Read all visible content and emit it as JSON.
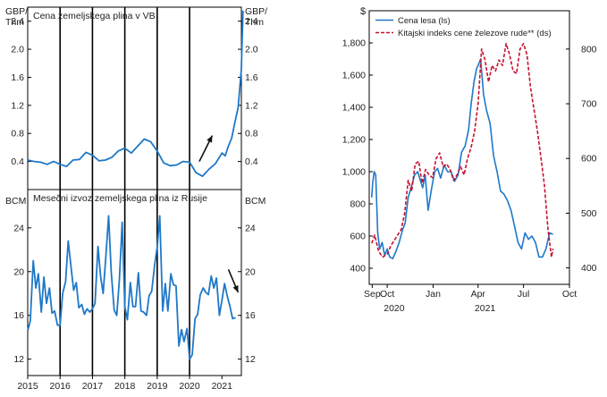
{
  "chart_data": [
    {
      "type": "line",
      "title": "Cena zemeljskega plina v VB",
      "unit_label": "GBP/\nThm",
      "ylim": [
        0,
        2.6
      ],
      "yticks": [
        0.4,
        0.8,
        1.2,
        1.6,
        2.0,
        2.4
      ],
      "ytick_labels": [
        "0.4",
        "0.8",
        "1.2",
        "1.6",
        "2.0",
        "2.4"
      ],
      "xlim": [
        2015,
        2021.6
      ],
      "vlines": [
        2016,
        2017,
        2018,
        2019,
        2020
      ],
      "arrow": {
        "direction": "up",
        "from": [
          2020.3,
          0.4
        ],
        "to": [
          2020.7,
          0.77
        ]
      },
      "series": [
        {
          "color": "#1f78c8",
          "x": [
            2015.0,
            2015.2,
            2015.4,
            2015.6,
            2015.8,
            2016.0,
            2016.2,
            2016.4,
            2016.6,
            2016.8,
            2017.0,
            2017.2,
            2017.4,
            2017.6,
            2017.8,
            2018.0,
            2018.2,
            2018.4,
            2018.6,
            2018.8,
            2019.0,
            2019.2,
            2019.4,
            2019.6,
            2019.8,
            2020.0,
            2020.2,
            2020.4,
            2020.6,
            2020.8,
            2021.0,
            2021.1,
            2021.2,
            2021.3,
            2021.4,
            2021.5,
            2021.6,
            2021.65
          ],
          "y": [
            0.42,
            0.4,
            0.39,
            0.36,
            0.4,
            0.36,
            0.33,
            0.42,
            0.43,
            0.53,
            0.49,
            0.41,
            0.42,
            0.46,
            0.55,
            0.59,
            0.52,
            0.62,
            0.72,
            0.68,
            0.55,
            0.38,
            0.34,
            0.35,
            0.4,
            0.39,
            0.24,
            0.19,
            0.29,
            0.37,
            0.52,
            0.48,
            0.62,
            0.73,
            0.96,
            1.17,
            1.72,
            2.55
          ]
        }
      ]
    },
    {
      "type": "line",
      "title": "Mesečni izvoz zemeljskega plina iz Rusije",
      "unit_label": "BCM",
      "ylim": [
        10.5,
        27.5
      ],
      "yticks": [
        12,
        16,
        20,
        24
      ],
      "ytick_labels": [
        "12",
        "16",
        "20",
        "24"
      ],
      "xlim": [
        2015,
        2021.6
      ],
      "xticks": [
        2015,
        2016,
        2017,
        2018,
        2019,
        2020,
        2021
      ],
      "xtick_labels": [
        "2015",
        "2016",
        "2017",
        "2018",
        "2019",
        "2020",
        "2021"
      ],
      "vlines": [
        2016,
        2017,
        2018,
        2019,
        2020
      ],
      "arrow": {
        "direction": "down",
        "from": [
          2021.2,
          20.2
        ],
        "to": [
          2021.5,
          18.1
        ]
      },
      "series": [
        {
          "color": "#1f78c8",
          "x": [
            2015.0,
            2015.08,
            2015.17,
            2015.25,
            2015.33,
            2015.42,
            2015.5,
            2015.58,
            2015.67,
            2015.75,
            2015.83,
            2015.92,
            2016.0,
            2016.08,
            2016.17,
            2016.25,
            2016.33,
            2016.42,
            2016.5,
            2016.58,
            2016.67,
            2016.75,
            2016.83,
            2016.92,
            2017.0,
            2017.08,
            2017.17,
            2017.25,
            2017.33,
            2017.42,
            2017.5,
            2017.58,
            2017.67,
            2017.75,
            2017.83,
            2017.92,
            2018.0,
            2018.08,
            2018.17,
            2018.25,
            2018.33,
            2018.42,
            2018.5,
            2018.58,
            2018.67,
            2018.75,
            2018.83,
            2018.92,
            2019.0,
            2019.08,
            2019.17,
            2019.25,
            2019.33,
            2019.42,
            2019.5,
            2019.58,
            2019.67,
            2019.75,
            2019.83,
            2019.92,
            2020.0,
            2020.08,
            2020.17,
            2020.25,
            2020.33,
            2020.42,
            2020.5,
            2020.58,
            2020.67,
            2020.75,
            2020.83,
            2020.92,
            2021.0,
            2021.08,
            2021.17,
            2021.25,
            2021.33,
            2021.42
          ],
          "y": [
            14.6,
            15.5,
            21.0,
            18.5,
            19.8,
            16.3,
            19.5,
            17.1,
            18.5,
            16.2,
            16.4,
            15.1,
            15.1,
            18.0,
            19.1,
            22.8,
            20.6,
            18.3,
            19.0,
            16.7,
            17.0,
            16.1,
            16.6,
            16.3,
            16.6,
            17.1,
            22.3,
            19.6,
            18.0,
            21.6,
            25.1,
            20.0,
            16.5,
            16.0,
            19.2,
            24.5,
            16.8,
            15.6,
            19.0,
            16.8,
            16.8,
            19.9,
            16.4,
            16.3,
            16.0,
            17.8,
            18.2,
            20.6,
            22.2,
            25.1,
            16.4,
            18.9,
            16.4,
            19.8,
            18.8,
            18.7,
            13.2,
            14.7,
            13.6,
            14.8,
            12.0,
            12.4,
            15.7,
            16.1,
            17.9,
            18.5,
            18.1,
            17.9,
            19.6,
            18.5,
            19.4,
            16.0,
            17.4,
            18.9,
            17.7,
            16.8,
            15.7,
            15.8
          ]
        }
      ]
    },
    {
      "type": "line",
      "unit_label": "$",
      "legend_position": "top-left",
      "x_start": "2020-09-01",
      "xticks": [
        "2020-09-01",
        "2020-10-01",
        "2021-01-01",
        "2021-04-01",
        "2021-07-01",
        "2021-10-01"
      ],
      "xtick_labels": [
        "Sep",
        "Oct",
        "Jan",
        "Apr",
        "Jul",
        "Oct"
      ],
      "year_labels": [
        {
          "label": "2020",
          "at": "2020-10-15"
        },
        {
          "label": "2021",
          "at": "2021-04-15"
        }
      ],
      "y_left": {
        "lim": [
          300,
          2000
        ],
        "ticks": [
          400,
          600,
          800,
          1000,
          1200,
          1400,
          1600,
          1800
        ],
        "tick_labels": [
          "400",
          "600",
          "800",
          "1,000",
          "1,200",
          "1,400",
          "1,600",
          "1,800"
        ]
      },
      "y_right": {
        "lim": [
          370,
          870
        ],
        "ticks": [
          400,
          500,
          600,
          700,
          800
        ],
        "tick_labels": [
          "400",
          "500",
          "600",
          "700",
          "800"
        ]
      },
      "series": [
        {
          "name": "Cena lesa (ls)",
          "axis": "left",
          "color": "#1f78c8",
          "style": "solid",
          "x": [
            "2020-08-31",
            "2020-09-02",
            "2020-09-05",
            "2020-09-08",
            "2020-09-12",
            "2020-09-16",
            "2020-09-21",
            "2020-09-26",
            "2020-10-01",
            "2020-10-06",
            "2020-10-12",
            "2020-10-18",
            "2020-10-25",
            "2020-11-01",
            "2020-11-06",
            "2020-11-12",
            "2020-11-18",
            "2020-11-25",
            "2020-12-01",
            "2020-12-06",
            "2020-12-11",
            "2020-12-16",
            "2020-12-22",
            "2020-12-28",
            "2021-01-04",
            "2021-01-10",
            "2021-01-16",
            "2021-01-23",
            "2021-01-30",
            "2021-02-06",
            "2021-02-13",
            "2021-02-20",
            "2021-02-27",
            "2021-03-06",
            "2021-03-13",
            "2021-03-18",
            "2021-03-24",
            "2021-03-29",
            "2021-04-01",
            "2021-04-06",
            "2021-04-12",
            "2021-04-18",
            "2021-04-25",
            "2021-05-02",
            "2021-05-09",
            "2021-05-16",
            "2021-05-23",
            "2021-05-30",
            "2021-06-06",
            "2021-06-13",
            "2021-06-20",
            "2021-06-27",
            "2021-07-04",
            "2021-07-11",
            "2021-07-18",
            "2021-07-25",
            "2021-08-01",
            "2021-08-08",
            "2021-08-15",
            "2021-08-22",
            "2021-08-29"
          ],
          "y": [
            840,
            930,
            1000,
            980,
            620,
            520,
            560,
            480,
            520,
            470,
            460,
            500,
            560,
            640,
            680,
            840,
            900,
            980,
            1000,
            950,
            900,
            980,
            760,
            880,
            1000,
            1020,
            960,
            1040,
            1000,
            1000,
            940,
            980,
            1120,
            1160,
            1260,
            1420,
            1560,
            1640,
            1660,
            1700,
            1480,
            1380,
            1300,
            1100,
            1000,
            880,
            860,
            820,
            760,
            660,
            560,
            520,
            620,
            580,
            600,
            560,
            470,
            470,
            520,
            620,
            610
          ]
        },
        {
          "name": "Kitajski indeks cene železove rude** (ds)",
          "axis": "right",
          "color": "#c8102e",
          "style": "dashed",
          "x": [
            "2020-08-31",
            "2020-09-06",
            "2020-09-14",
            "2020-09-22",
            "2020-10-01",
            "2020-10-08",
            "2020-10-15",
            "2020-10-22",
            "2020-10-29",
            "2020-11-05",
            "2020-11-12",
            "2020-11-19",
            "2020-11-26",
            "2020-12-03",
            "2020-12-10",
            "2020-12-17",
            "2020-12-24",
            "2020-12-31",
            "2021-01-07",
            "2021-01-14",
            "2021-01-21",
            "2021-01-28",
            "2021-02-04",
            "2021-02-11",
            "2021-02-18",
            "2021-02-25",
            "2021-03-04",
            "2021-03-11",
            "2021-03-18",
            "2021-03-25",
            "2021-04-01",
            "2021-04-08",
            "2021-04-15",
            "2021-04-22",
            "2021-04-29",
            "2021-05-06",
            "2021-05-13",
            "2021-05-20",
            "2021-05-27",
            "2021-06-03",
            "2021-06-10",
            "2021-06-17",
            "2021-06-24",
            "2021-07-01",
            "2021-07-08",
            "2021-07-15",
            "2021-07-22",
            "2021-07-29",
            "2021-08-05",
            "2021-08-12",
            "2021-08-19",
            "2021-08-26",
            "2021-08-29"
          ],
          "y": [
            445,
            460,
            430,
            420,
            425,
            440,
            450,
            460,
            470,
            500,
            560,
            540,
            590,
            595,
            555,
            580,
            570,
            565,
            600,
            610,
            585,
            590,
            580,
            560,
            570,
            585,
            570,
            600,
            620,
            650,
            700,
            800,
            780,
            740,
            770,
            760,
            780,
            770,
            810,
            790,
            760,
            755,
            800,
            810,
            790,
            730,
            690,
            650,
            600,
            550,
            470,
            420,
            435
          ]
        }
      ]
    }
  ]
}
